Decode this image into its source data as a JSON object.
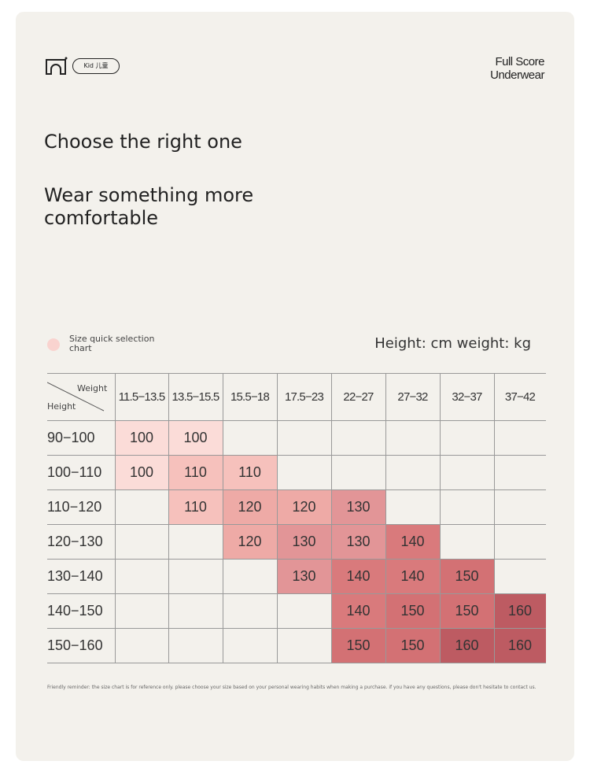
{
  "header": {
    "badge": "Kid 儿童",
    "brand": [
      "Full Score",
      "Underwear"
    ]
  },
  "headline": "Choose the right one",
  "subheadline": [
    "Wear something more",
    "comfortable"
  ],
  "legend": {
    "label": [
      "Size quick selection",
      "chart"
    ],
    "units": "Height: cm weight: kg"
  },
  "table": {
    "corner": {
      "top": "Weight",
      "bottom": "Height"
    },
    "columns": [
      "11.5−13.5",
      "13.5−15.5",
      "15.5−18",
      "17.5−23",
      "22−27",
      "27−32",
      "32−37",
      "37−42"
    ],
    "rows": [
      {
        "label": "90−100",
        "cells": [
          100,
          100,
          null,
          null,
          null,
          null,
          null,
          null
        ]
      },
      {
        "label": "100−110",
        "cells": [
          100,
          110,
          110,
          null,
          null,
          null,
          null,
          null
        ]
      },
      {
        "label": "110−120",
        "cells": [
          null,
          110,
          120,
          120,
          130,
          null,
          null,
          null
        ]
      },
      {
        "label": "120−130",
        "cells": [
          null,
          null,
          120,
          130,
          130,
          140,
          null,
          null
        ]
      },
      {
        "label": "130−140",
        "cells": [
          null,
          null,
          null,
          130,
          140,
          140,
          150,
          null
        ]
      },
      {
        "label": "140−150",
        "cells": [
          null,
          null,
          null,
          null,
          140,
          150,
          150,
          160
        ]
      },
      {
        "label": "150−160",
        "cells": [
          null,
          null,
          null,
          null,
          150,
          150,
          160,
          160
        ]
      }
    ],
    "colors": {
      "100": "#fbdcd8",
      "110": "#f6c1bc",
      "120": "#eeaaa6",
      "130": "#e29597",
      "140": "#d97a7c",
      "150": "#d37174",
      "160": "#bd5b62"
    }
  },
  "footnote": "Friendly reminder: the size chart is for reference only. please choose your size based on your personal wearing habits when making a purchase. if you have any questions, please don't hesitate to contact us."
}
